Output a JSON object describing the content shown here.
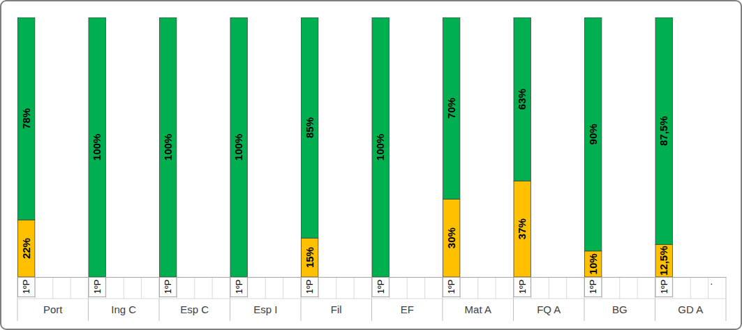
{
  "chart_data": {
    "type": "bar",
    "stacked": true,
    "data_labels": true,
    "tick_labels": "x",
    "ylim": [
      0,
      100
    ],
    "categories": [
      "1ºP",
      null,
      null,
      null,
      "1ºP",
      null,
      null,
      null,
      "1ºP",
      null,
      null,
      null,
      "1ºP",
      null,
      null,
      null,
      "1ºP",
      null,
      null,
      null,
      "1ºP",
      null,
      null,
      null,
      "1ºP",
      null,
      null,
      null,
      "1ºP",
      null,
      null,
      null,
      "1ºP",
      null,
      null,
      null,
      "1ºP",
      null,
      null,
      "."
    ],
    "groups": [
      "Port",
      "Ing C",
      "Esp C",
      "Esp I",
      "Fil",
      "EF",
      "Mat A",
      "FQ A",
      "BG",
      "GD A"
    ],
    "series": [
      {
        "color": "#ffc000",
        "values": [
          22,
          null,
          null,
          null,
          null,
          null,
          null,
          null,
          null,
          null,
          null,
          null,
          null,
          null,
          null,
          null,
          15,
          null,
          null,
          null,
          null,
          null,
          null,
          null,
          30,
          null,
          null,
          null,
          37,
          null,
          null,
          null,
          10,
          null,
          null,
          null,
          12.5,
          null,
          null,
          null
        ],
        "value_labels": [
          "22%",
          null,
          null,
          null,
          null,
          null,
          null,
          null,
          null,
          null,
          null,
          null,
          null,
          null,
          null,
          null,
          "15%",
          null,
          null,
          null,
          null,
          null,
          null,
          null,
          "30%",
          null,
          null,
          null,
          "37%",
          null,
          null,
          null,
          "10%",
          null,
          null,
          null,
          "12,5%",
          null,
          null,
          null
        ]
      },
      {
        "color": "#00b050",
        "values": [
          78,
          null,
          null,
          null,
          100,
          null,
          null,
          null,
          100,
          null,
          null,
          null,
          100,
          null,
          null,
          null,
          85,
          null,
          null,
          null,
          100,
          null,
          null,
          null,
          70,
          null,
          null,
          null,
          63,
          null,
          null,
          null,
          90,
          null,
          null,
          null,
          87.5,
          null,
          null,
          null
        ],
        "value_labels": [
          "78%",
          null,
          null,
          null,
          "100%",
          null,
          null,
          null,
          "100%",
          null,
          null,
          null,
          "100%",
          null,
          null,
          null,
          "85%",
          null,
          null,
          null,
          "100%",
          null,
          null,
          null,
          "70%",
          null,
          null,
          null,
          "63%",
          null,
          null,
          null,
          "90%",
          null,
          null,
          null,
          "87,5%",
          null,
          null,
          null
        ]
      }
    ]
  }
}
